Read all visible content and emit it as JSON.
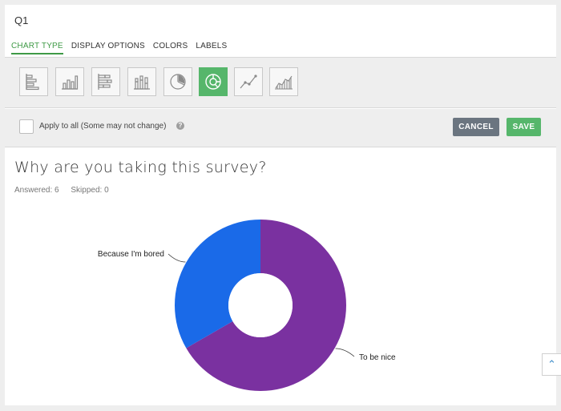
{
  "header": {
    "question_number": "Q1"
  },
  "tabs": [
    {
      "label": "CHART TYPE",
      "active": true
    },
    {
      "label": "DISPLAY OPTIONS",
      "active": false
    },
    {
      "label": "COLORS",
      "active": false
    },
    {
      "label": "LABELS",
      "active": false
    }
  ],
  "chart_types": [
    {
      "icon": "horizontal-bar-icon",
      "active": false
    },
    {
      "icon": "vertical-bar-icon",
      "active": false
    },
    {
      "icon": "stacked-horizontal-bar-icon",
      "active": false
    },
    {
      "icon": "stacked-vertical-bar-icon",
      "active": false
    },
    {
      "icon": "pie-chart-icon",
      "active": false
    },
    {
      "icon": "donut-chart-icon",
      "active": true
    },
    {
      "icon": "line-chart-icon",
      "active": false
    },
    {
      "icon": "area-chart-icon",
      "active": false
    }
  ],
  "actions": {
    "apply_all_label": "Apply to all (Some may not change)",
    "apply_all_checked": false,
    "cancel_label": "CANCEL",
    "save_label": "SAVE"
  },
  "question": {
    "title": "Why are you taking this survey?",
    "answered": "Answered: 6",
    "skipped": "Skipped: 0"
  },
  "colors": {
    "accent_green": "#56b66b",
    "series_blue": "#1a6ae8",
    "series_purple": "#7a31a0"
  },
  "chart_data": {
    "type": "pie",
    "variant": "donut",
    "title": "",
    "series": [
      {
        "name": "Because I'm bored",
        "value": 2,
        "color": "#1a6ae8"
      },
      {
        "name": "To be nice",
        "value": 4,
        "color": "#7a31a0"
      }
    ]
  }
}
